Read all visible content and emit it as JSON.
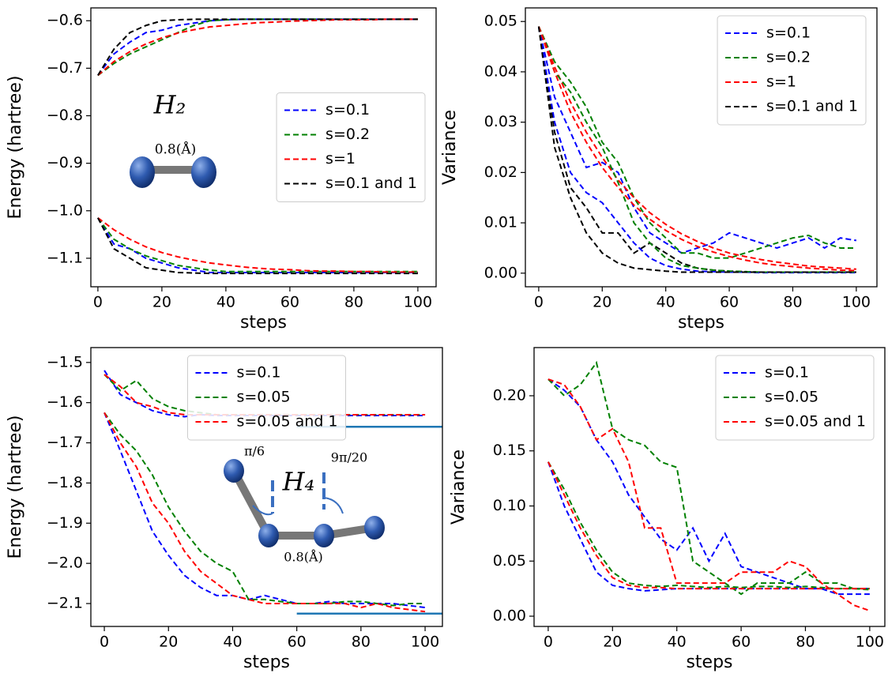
{
  "chart_data": [
    {
      "type": "line",
      "xlabel": "steps",
      "ylabel": "Energy (hartree)",
      "legend": "center right",
      "x": [
        0,
        5,
        10,
        15,
        20,
        25,
        30,
        35,
        40,
        45,
        50,
        55,
        60,
        65,
        70,
        75,
        80,
        85,
        90,
        95,
        100
      ],
      "xlim": [
        -2.2,
        105.7
      ],
      "xticks": [
        0,
        20,
        40,
        60,
        80,
        100
      ],
      "ylim": [
        -1.16,
        -0.573
      ],
      "yticks": [
        {
          "value": -1.1,
          "label": "−1.1"
        },
        {
          "value": -1.0,
          "label": "−1.0"
        },
        {
          "value": -0.9,
          "label": "−0.9"
        },
        {
          "value": -0.8,
          "label": "−0.8"
        },
        {
          "value": -0.7,
          "label": "−0.7"
        },
        {
          "value": -0.6,
          "label": "−0.6"
        }
      ],
      "annotations": [
        "H₂",
        "0.8(Å)"
      ],
      "series": [
        {
          "name": "s=0.1",
          "color": "#0000ff",
          "values": [
            -0.715,
            -0.67,
            -0.645,
            -0.625,
            -0.62,
            -0.61,
            -0.605,
            -0.6,
            -0.598,
            -0.597,
            -0.597,
            -0.597,
            -0.597,
            -0.597,
            -0.597,
            -0.597,
            -0.597,
            -0.597,
            -0.597,
            -0.597,
            -0.597
          ]
        },
        {
          "name": "s=0.2",
          "color": "#008000",
          "values": [
            -0.715,
            -0.69,
            -0.67,
            -0.655,
            -0.64,
            -0.625,
            -0.61,
            -0.6,
            -0.598,
            -0.597,
            -0.597,
            -0.597,
            -0.597,
            -0.597,
            -0.597,
            -0.597,
            -0.597,
            -0.597,
            -0.597,
            -0.597,
            -0.597
          ]
        },
        {
          "name": "s=1",
          "color": "#ff0000",
          "values": [
            -0.715,
            -0.686,
            -0.665,
            -0.649,
            -0.636,
            -0.626,
            -0.619,
            -0.613,
            -0.61,
            -0.607,
            -0.604,
            -0.603,
            -0.601,
            -0.6,
            -0.599,
            -0.598,
            -0.598,
            -0.598,
            -0.597,
            -0.597,
            -0.597
          ]
        },
        {
          "name": "s=0.1 and 1",
          "color": "#000000",
          "values": [
            -0.715,
            -0.66,
            -0.625,
            -0.61,
            -0.6,
            -0.598,
            -0.597,
            -0.597,
            -0.597,
            -0.597,
            -0.597,
            -0.597,
            -0.597,
            -0.597,
            -0.597,
            -0.597,
            -0.597,
            -0.597,
            -0.597,
            -0.597,
            -0.597
          ]
        },
        {
          "color": "#0000ff",
          "values": [
            -1.015,
            -1.07,
            -1.08,
            -1.1,
            -1.11,
            -1.12,
            -1.125,
            -1.13,
            -1.13,
            -1.13,
            -1.13,
            -1.13,
            -1.13,
            -1.13,
            -1.13,
            -1.13,
            -1.13,
            -1.13,
            -1.13,
            -1.13,
            -1.13
          ]
        },
        {
          "color": "#008000",
          "values": [
            -1.015,
            -1.06,
            -1.08,
            -1.095,
            -1.105,
            -1.115,
            -1.12,
            -1.125,
            -1.128,
            -1.128,
            -1.128,
            -1.128,
            -1.128,
            -1.128,
            -1.128,
            -1.128,
            -1.128,
            -1.128,
            -1.128,
            -1.128,
            -1.128
          ]
        },
        {
          "color": "#ff0000",
          "values": [
            -1.015,
            -1.04,
            -1.06,
            -1.076,
            -1.088,
            -1.097,
            -1.104,
            -1.11,
            -1.114,
            -1.118,
            -1.121,
            -1.123,
            -1.124,
            -1.126,
            -1.127,
            -1.127,
            -1.128,
            -1.128,
            -1.129,
            -1.129,
            -1.129
          ]
        },
        {
          "color": "#000000",
          "values": [
            -1.015,
            -1.08,
            -1.1,
            -1.12,
            -1.125,
            -1.13,
            -1.131,
            -1.132,
            -1.132,
            -1.132,
            -1.132,
            -1.132,
            -1.132,
            -1.132,
            -1.132,
            -1.132,
            -1.132,
            -1.132,
            -1.132,
            -1.132,
            -1.132
          ]
        }
      ]
    },
    {
      "type": "line",
      "xlabel": "steps",
      "ylabel": "Variance",
      "legend": "upper right",
      "x": [
        0,
        5,
        10,
        15,
        20,
        25,
        30,
        35,
        40,
        45,
        50,
        55,
        60,
        65,
        70,
        75,
        80,
        85,
        90,
        95,
        100
      ],
      "xlim": [
        -4.2,
        106.5
      ],
      "xticks": [
        0,
        20,
        40,
        60,
        80,
        100
      ],
      "ylim": [
        -0.0027,
        0.0527
      ],
      "yticks": [
        {
          "value": 0,
          "label": "0.00"
        },
        {
          "value": 0.01,
          "label": "0.01"
        },
        {
          "value": 0.02,
          "label": "0.02"
        },
        {
          "value": 0.03,
          "label": "0.03"
        },
        {
          "value": 0.04,
          "label": "0.04"
        },
        {
          "value": 0.05,
          "label": "0.05"
        }
      ],
      "series": [
        {
          "name": "s=0.1",
          "color": "#0000ff",
          "values": [
            0.049,
            0.035,
            0.028,
            0.021,
            0.022,
            0.02,
            0.013,
            0.008,
            0.006,
            0.004,
            0.005,
            0.006,
            0.008,
            0.007,
            0.006,
            0.005,
            0.006,
            0.007,
            0.005,
            0.007,
            0.0065
          ]
        },
        {
          "name": "s=0.2",
          "color": "#008000",
          "values": [
            0.049,
            0.042,
            0.038,
            0.033,
            0.026,
            0.022,
            0.015,
            0.01,
            0.007,
            0.004,
            0.004,
            0.003,
            0.003,
            0.004,
            0.005,
            0.006,
            0.007,
            0.0075,
            0.006,
            0.005,
            0.005
          ]
        },
        {
          "name": "s=1",
          "color": "#ff0000",
          "values": [
            0.049,
            0.041,
            0.034,
            0.028,
            0.023,
            0.0185,
            0.015,
            0.012,
            0.0097,
            0.0078,
            0.0063,
            0.005,
            0.004,
            0.0033,
            0.0027,
            0.0022,
            0.0018,
            0.0014,
            0.0012,
            0.001,
            0.0008
          ]
        },
        {
          "name": "s=0.1 and 1",
          "color": "#000000",
          "values": [
            0.049,
            0.028,
            0.017,
            0.013,
            0.008,
            0.008,
            0.004,
            0.006,
            0.004,
            0.002,
            0.001,
            0.0006,
            0.0004,
            0.0003,
            0.0002,
            0.0002,
            0.0002,
            0.0002,
            0.0002,
            0.0002,
            0.0002
          ]
        },
        {
          "color": "#0000ff",
          "values": [
            0.049,
            0.03,
            0.02,
            0.016,
            0.014,
            0.01,
            0.006,
            0.003,
            0.0015,
            0.0008,
            0.0004,
            0.0003,
            0.0002,
            0.0002,
            0.0001,
            0.0001,
            0.0001,
            0.0001,
            0.0001,
            0.0001,
            0.0001
          ]
        },
        {
          "color": "#008000",
          "values": [
            0.049,
            0.04,
            0.036,
            0.03,
            0.025,
            0.018,
            0.01,
            0.006,
            0.003,
            0.0015,
            0.001,
            0.0006,
            0.0004,
            0.0003,
            0.0002,
            0.0002,
            0.0002,
            0.0002,
            0.0002,
            0.0002,
            0.0002
          ]
        },
        {
          "color": "#ff0000",
          "values": [
            0.049,
            0.04,
            0.032,
            0.026,
            0.021,
            0.017,
            0.0135,
            0.0107,
            0.0085,
            0.0067,
            0.0053,
            0.0042,
            0.0033,
            0.0026,
            0.002,
            0.0016,
            0.0013,
            0.001,
            0.0008,
            0.0006,
            0.0005
          ]
        },
        {
          "color": "#000000",
          "values": [
            0.049,
            0.025,
            0.015,
            0.008,
            0.004,
            0.002,
            0.001,
            0.0007,
            0.0004,
            0.0002,
            0.0002,
            0.0002,
            0.0002,
            0.0002,
            0.0002,
            0.0002,
            0.0002,
            0.0002,
            0.0002,
            0.0002,
            0.0002
          ]
        }
      ]
    },
    {
      "type": "line",
      "xlabel": "steps",
      "ylabel": "Energy (hartree)",
      "legend": "upper center",
      "x": [
        0,
        5,
        10,
        15,
        20,
        25,
        30,
        35,
        40,
        45,
        50,
        55,
        60,
        65,
        70,
        75,
        80,
        85,
        90,
        95,
        100
      ],
      "xlim": [
        -4.2,
        105.4
      ],
      "xticks": [
        0,
        20,
        40,
        60,
        80,
        100
      ],
      "ylim": [
        -2.157,
        -1.463
      ],
      "yticks": [
        {
          "value": -2.1,
          "label": "−2.1"
        },
        {
          "value": -2.0,
          "label": "−2.0"
        },
        {
          "value": -1.9,
          "label": "−1.9"
        },
        {
          "value": -1.8,
          "label": "−1.8"
        },
        {
          "value": -1.7,
          "label": "−1.7"
        },
        {
          "value": -1.6,
          "label": "−1.6"
        },
        {
          "value": -1.5,
          "label": "−1.5"
        }
      ],
      "annotations": [
        "H₄",
        "π/6",
        "9π/20",
        "0.8(Å)"
      ],
      "hlines": [
        {
          "y": -1.66,
          "xmin": 60,
          "xmax": 105.4,
          "color": "#1f77b4"
        },
        {
          "y": -2.125,
          "xmin": 60,
          "xmax": 105.4,
          "color": "#1f77b4"
        }
      ],
      "series": [
        {
          "name": "s=0.1",
          "color": "#0000ff",
          "values": [
            -1.52,
            -1.58,
            -1.6,
            -1.62,
            -1.63,
            -1.635,
            -1.63,
            -1.632,
            -1.632,
            -1.632,
            -1.632,
            -1.632,
            -1.632,
            -1.632,
            -1.632,
            -1.632,
            -1.632,
            -1.632,
            -1.632,
            -1.632,
            -1.632
          ]
        },
        {
          "name": "s=0.05",
          "color": "#008000",
          "values": [
            -1.53,
            -1.57,
            -1.545,
            -1.59,
            -1.61,
            -1.62,
            -1.625,
            -1.63,
            -1.63,
            -1.63,
            -1.63,
            -1.63,
            -1.63,
            -1.63,
            -1.63,
            -1.63,
            -1.63,
            -1.63,
            -1.63,
            -1.63,
            -1.63
          ]
        },
        {
          "name": "s=0.05 and 1",
          "color": "#ff0000",
          "values": [
            -1.53,
            -1.56,
            -1.6,
            -1.61,
            -1.625,
            -1.63,
            -1.63,
            -1.63,
            -1.63,
            -1.63,
            -1.63,
            -1.63,
            -1.63,
            -1.63,
            -1.63,
            -1.63,
            -1.63,
            -1.63,
            -1.63,
            -1.63,
            -1.63
          ]
        },
        {
          "color": "#0000ff",
          "values": [
            -1.625,
            -1.72,
            -1.82,
            -1.92,
            -1.98,
            -2.03,
            -2.06,
            -2.08,
            -2.08,
            -2.09,
            -2.08,
            -2.09,
            -2.1,
            -2.1,
            -2.095,
            -2.1,
            -2.1,
            -2.1,
            -2.1,
            -2.105,
            -2.11
          ]
        },
        {
          "color": "#008000",
          "values": [
            -1.625,
            -1.68,
            -1.72,
            -1.78,
            -1.86,
            -1.92,
            -1.97,
            -2.0,
            -2.02,
            -2.09,
            -2.09,
            -2.095,
            -2.1,
            -2.1,
            -2.1,
            -2.095,
            -2.095,
            -2.1,
            -2.105,
            -2.1,
            -2.1
          ]
        },
        {
          "color": "#ff0000",
          "values": [
            -1.625,
            -1.7,
            -1.76,
            -1.85,
            -1.9,
            -1.97,
            -2.02,
            -2.05,
            -2.08,
            -2.09,
            -2.1,
            -2.1,
            -2.1,
            -2.1,
            -2.1,
            -2.1,
            -2.11,
            -2.1,
            -2.11,
            -2.115,
            -2.12
          ]
        }
      ]
    },
    {
      "type": "line",
      "xlabel": "steps",
      "ylabel": "Variance",
      "legend": "upper right",
      "x": [
        0,
        5,
        10,
        15,
        20,
        25,
        30,
        35,
        40,
        45,
        50,
        55,
        60,
        65,
        70,
        75,
        80,
        85,
        90,
        95,
        100
      ],
      "xlim": [
        -4.4,
        104.7
      ],
      "xticks": [
        0,
        20,
        40,
        60,
        80,
        100
      ],
      "ylim": [
        -0.0093,
        0.2437
      ],
      "yticks": [
        {
          "value": 0,
          "label": "0.00"
        },
        {
          "value": 0.05,
          "label": "0.05"
        },
        {
          "value": 0.1,
          "label": "0.10"
        },
        {
          "value": 0.15,
          "label": "0.15"
        },
        {
          "value": 0.2,
          "label": "0.20"
        }
      ],
      "series": [
        {
          "name": "s=0.1",
          "color": "#0000ff",
          "values": [
            0.215,
            0.205,
            0.19,
            0.16,
            0.14,
            0.11,
            0.09,
            0.07,
            0.06,
            0.08,
            0.05,
            0.075,
            0.045,
            0.04,
            0.035,
            0.03,
            0.025,
            0.025,
            0.02,
            0.02,
            0.02
          ]
        },
        {
          "name": "s=0.05",
          "color": "#008000",
          "values": [
            0.215,
            0.2,
            0.21,
            0.23,
            0.17,
            0.16,
            0.155,
            0.14,
            0.135,
            0.05,
            0.04,
            0.03,
            0.02,
            0.03,
            0.03,
            0.03,
            0.04,
            0.03,
            0.03,
            0.025,
            0.025
          ]
        },
        {
          "name": "s=0.05 and 1",
          "color": "#ff0000",
          "values": [
            0.215,
            0.21,
            0.19,
            0.16,
            0.17,
            0.14,
            0.08,
            0.08,
            0.03,
            0.03,
            0.03,
            0.03,
            0.04,
            0.04,
            0.04,
            0.05,
            0.045,
            0.03,
            0.02,
            0.01,
            0.005
          ]
        },
        {
          "color": "#0000ff",
          "values": [
            0.14,
            0.1,
            0.07,
            0.04,
            0.028,
            0.025,
            0.023,
            0.024,
            0.025,
            0.025,
            0.025,
            0.025,
            0.025,
            0.025,
            0.025,
            0.025,
            0.025,
            0.025,
            0.025,
            0.025,
            0.025
          ]
        },
        {
          "color": "#008000",
          "values": [
            0.14,
            0.115,
            0.085,
            0.06,
            0.04,
            0.03,
            0.028,
            0.027,
            0.028,
            0.027,
            0.026,
            0.027,
            0.026,
            0.027,
            0.027,
            0.026,
            0.027,
            0.026,
            0.025,
            0.025,
            0.024
          ]
        },
        {
          "color": "#ff0000",
          "values": [
            0.14,
            0.11,
            0.08,
            0.055,
            0.035,
            0.028,
            0.026,
            0.026,
            0.025,
            0.025,
            0.025,
            0.025,
            0.025,
            0.025,
            0.025,
            0.025,
            0.025,
            0.025,
            0.025,
            0.025,
            0.025
          ]
        }
      ]
    }
  ]
}
